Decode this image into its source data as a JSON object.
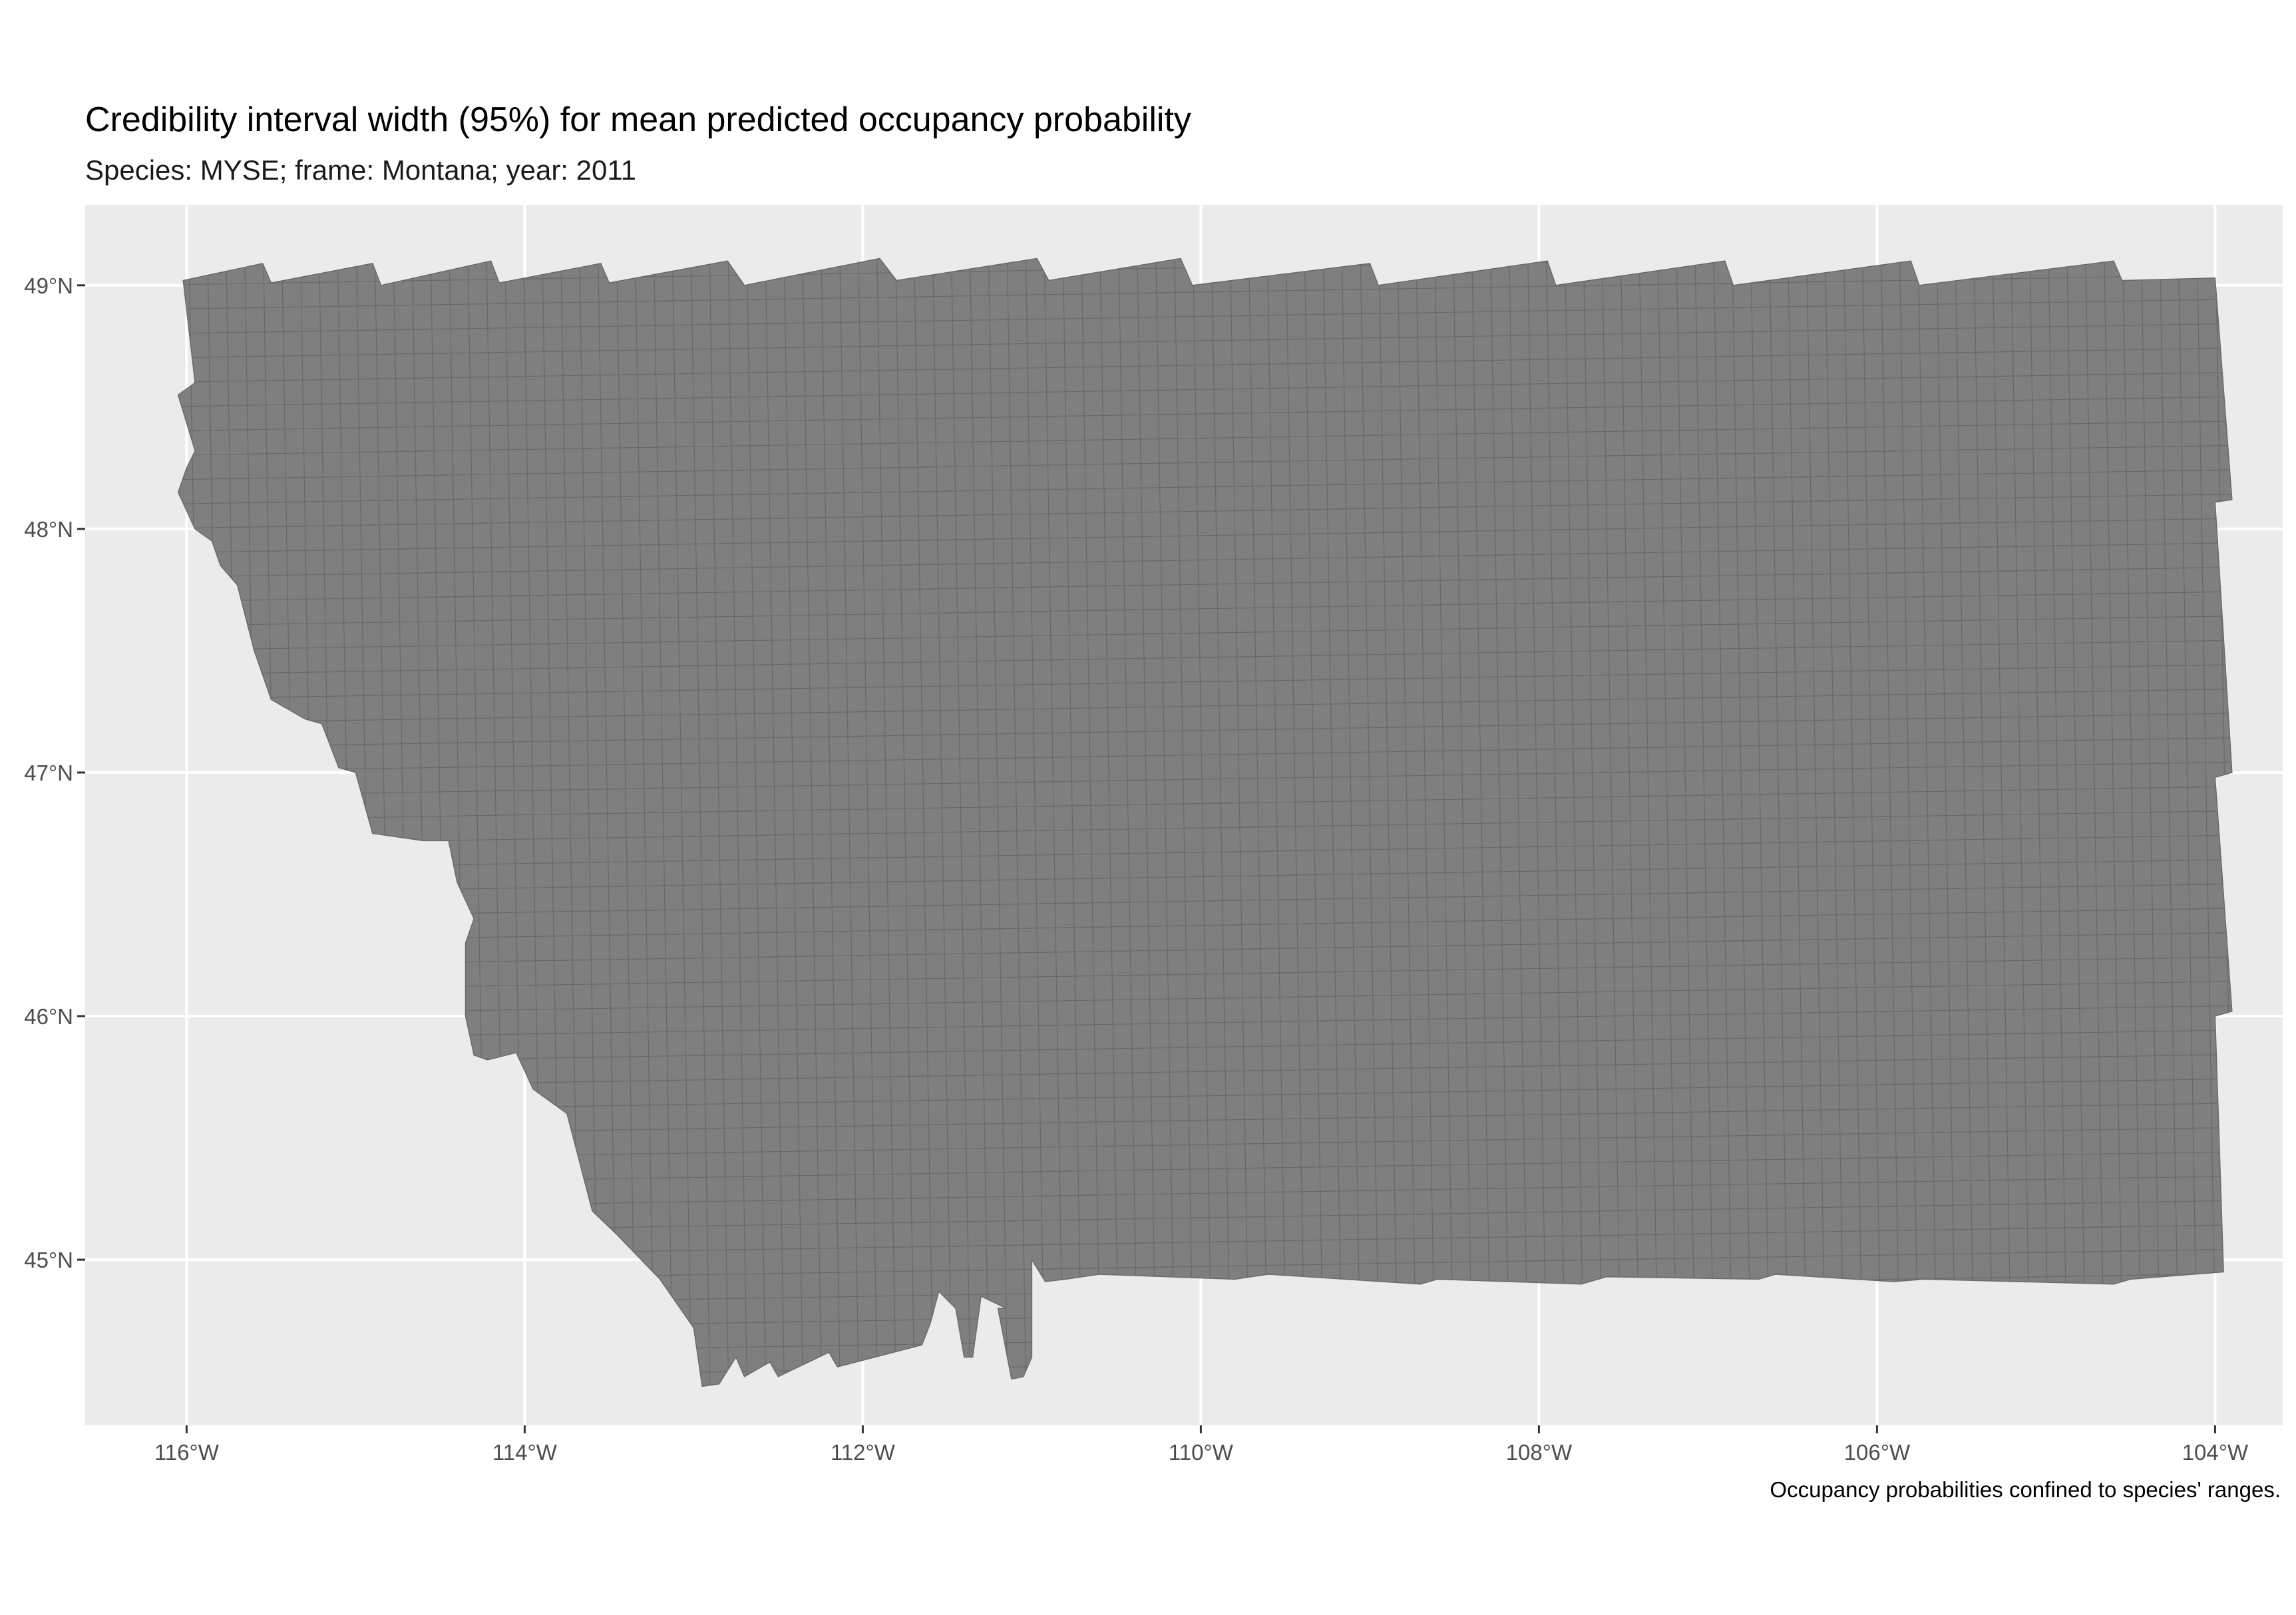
{
  "title": "Credibility interval width (95%) for mean predicted occupancy probability",
  "subtitle": "Species: MYSE; frame: Montana; year: 2011",
  "caption": "Occupancy probabilities confined to species' ranges.",
  "colors": {
    "panel_background": "#ebebeb",
    "grid_line": "#ffffff",
    "cell_fill": "#7f7f7f",
    "cell_border": "#6a6a6a"
  },
  "chart_data": {
    "type": "heatmap",
    "projection": "map",
    "x_axis": {
      "unit": "degrees longitude",
      "range": [
        -116.6,
        -103.6
      ],
      "ticks": [
        {
          "value": -116,
          "label": "116°W"
        },
        {
          "value": -114,
          "label": "114°W"
        },
        {
          "value": -112,
          "label": "112°W"
        },
        {
          "value": -110,
          "label": "110°W"
        },
        {
          "value": -108,
          "label": "108°W"
        },
        {
          "value": -106,
          "label": "106°W"
        },
        {
          "value": -104,
          "label": "104°W"
        }
      ]
    },
    "y_axis": {
      "unit": "degrees latitude",
      "range": [
        44.32,
        49.33
      ],
      "ticks": [
        {
          "value": 45,
          "label": "45°N"
        },
        {
          "value": 46,
          "label": "46°N"
        },
        {
          "value": 47,
          "label": "47°N"
        },
        {
          "value": 48,
          "label": "48°N"
        },
        {
          "value": 49,
          "label": "49°N"
        }
      ]
    },
    "grid": true,
    "legend": "none",
    "grid_cell_size_deg": {
      "lon": 0.11,
      "lat": 0.1
    },
    "region_outline_lonlat": [
      [
        -116.02,
        49.02
      ],
      [
        -115.55,
        49.09
      ],
      [
        -115.5,
        49.01
      ],
      [
        -114.9,
        49.09
      ],
      [
        -114.85,
        49.0
      ],
      [
        -114.2,
        49.1
      ],
      [
        -114.15,
        49.01
      ],
      [
        -113.55,
        49.09
      ],
      [
        -113.5,
        49.01
      ],
      [
        -112.8,
        49.1
      ],
      [
        -112.7,
        49.0
      ],
      [
        -111.9,
        49.11
      ],
      [
        -111.8,
        49.02
      ],
      [
        -110.97,
        49.11
      ],
      [
        -110.9,
        49.02
      ],
      [
        -110.12,
        49.11
      ],
      [
        -110.05,
        49.0
      ],
      [
        -109.0,
        49.09
      ],
      [
        -108.95,
        49.0
      ],
      [
        -107.95,
        49.1
      ],
      [
        -107.9,
        49.0
      ],
      [
        -106.9,
        49.1
      ],
      [
        -106.85,
        49.0
      ],
      [
        -105.8,
        49.1
      ],
      [
        -105.75,
        49.0
      ],
      [
        -104.6,
        49.1
      ],
      [
        -104.55,
        49.02
      ],
      [
        -104.0,
        49.03
      ],
      [
        -103.9,
        48.12
      ],
      [
        -104.0,
        48.11
      ],
      [
        -103.9,
        47.0
      ],
      [
        -104.0,
        46.98
      ],
      [
        -103.9,
        46.02
      ],
      [
        -104.0,
        46.0
      ],
      [
        -103.95,
        44.95
      ],
      [
        -104.5,
        44.92
      ],
      [
        -104.6,
        44.9
      ],
      [
        -105.72,
        44.92
      ],
      [
        -105.9,
        44.91
      ],
      [
        -106.6,
        44.94
      ],
      [
        -106.7,
        44.92
      ],
      [
        -107.6,
        44.93
      ],
      [
        -107.75,
        44.9
      ],
      [
        -108.6,
        44.92
      ],
      [
        -108.7,
        44.9
      ],
      [
        -109.6,
        44.94
      ],
      [
        -109.8,
        44.92
      ],
      [
        -110.6,
        44.94
      ],
      [
        -110.8,
        44.92
      ],
      [
        -110.92,
        44.91
      ],
      [
        -111.0,
        45.0
      ],
      [
        -111.0,
        44.6
      ],
      [
        -111.05,
        44.52
      ],
      [
        -111.12,
        44.51
      ],
      [
        -111.2,
        44.8
      ],
      [
        -111.15,
        44.8
      ],
      [
        -111.3,
        44.85
      ],
      [
        -111.35,
        44.6
      ],
      [
        -111.4,
        44.6
      ],
      [
        -111.45,
        44.8
      ],
      [
        -111.55,
        44.87
      ],
      [
        -111.6,
        44.74
      ],
      [
        -111.65,
        44.65
      ],
      [
        -112.15,
        44.56
      ],
      [
        -112.2,
        44.62
      ],
      [
        -112.5,
        44.52
      ],
      [
        -112.55,
        44.58
      ],
      [
        -112.7,
        44.52
      ],
      [
        -112.75,
        44.6
      ],
      [
        -112.85,
        44.49
      ],
      [
        -112.95,
        44.48
      ],
      [
        -113.0,
        44.72
      ],
      [
        -113.2,
        44.92
      ],
      [
        -113.45,
        45.1
      ],
      [
        -113.6,
        45.2
      ],
      [
        -113.75,
        45.6
      ],
      [
        -113.95,
        45.7
      ],
      [
        -114.05,
        45.85
      ],
      [
        -114.22,
        45.82
      ],
      [
        -114.3,
        45.84
      ],
      [
        -114.35,
        46.0
      ],
      [
        -114.35,
        46.3
      ],
      [
        -114.3,
        46.4
      ],
      [
        -114.4,
        46.55
      ],
      [
        -114.45,
        46.72
      ],
      [
        -114.6,
        46.72
      ],
      [
        -114.9,
        46.75
      ],
      [
        -115.0,
        47.0
      ],
      [
        -115.1,
        47.02
      ],
      [
        -115.2,
        47.2
      ],
      [
        -115.3,
        47.22
      ],
      [
        -115.5,
        47.3
      ],
      [
        -115.6,
        47.5
      ],
      [
        -115.7,
        47.77
      ],
      [
        -115.8,
        47.85
      ],
      [
        -115.85,
        47.95
      ],
      [
        -115.95,
        48.0
      ],
      [
        -116.05,
        48.15
      ],
      [
        -116.0,
        48.25
      ],
      [
        -115.95,
        48.32
      ],
      [
        -116.05,
        48.55
      ],
      [
        -115.95,
        48.6
      ],
      [
        -116.02,
        49.02
      ]
    ],
    "values": "single uniform fill; no colour scale shown"
  }
}
